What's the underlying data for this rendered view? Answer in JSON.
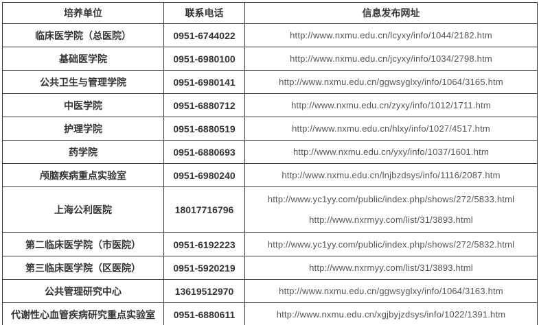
{
  "table": {
    "headers": {
      "unit": "培养单位",
      "phone": "联系电话",
      "url": "信息发布网址"
    },
    "rows": [
      {
        "unit": "临床医学院（总医院）",
        "phone": "0951-6744022",
        "urls": [
          "http://www.nxmu.edu.cn/lcyxy/info/1044/2182.htm"
        ]
      },
      {
        "unit": "基础医学院",
        "phone": "0951-6980100",
        "urls": [
          "http://www.nxmu.edu.cn/jcyxy/info/1034/2798.htm"
        ]
      },
      {
        "unit": "公共卫生与管理学院",
        "phone": "0951-6980141",
        "urls": [
          "http://www.nxmu.edu.cn/ggwsyglxy/info/1064/3165.htm"
        ]
      },
      {
        "unit": "中医学院",
        "phone": "0951-6880712",
        "urls": [
          "http://www.nxmu.edu.cn/zyxy/info/1012/1711.htm"
        ]
      },
      {
        "unit": "护理学院",
        "phone": "0951-6880519",
        "urls": [
          "http://www.nxmu.edu.cn/hlxy/info/1027/4517.htm"
        ]
      },
      {
        "unit": "药学院",
        "phone": "0951-6880693",
        "urls": [
          "http://www.nxmu.edu.cn/yxy/info/1037/1601.htm"
        ]
      },
      {
        "unit": "颅脑疾病重点实验室",
        "phone": "0951-6980240",
        "urls": [
          "http://www.nxmu.edu.cn/lnjbzdsys/info/1116/2087.htm"
        ]
      },
      {
        "unit": "上海公利医院",
        "phone": "18017716796",
        "urls": [
          "http://www.yc1yy.com/public/index.php/shows/272/5833.html",
          "http://www.nxrmyy.com/list/31/3893.html"
        ]
      },
      {
        "unit": "第二临床医学院（市医院）",
        "phone": "0951-6192223",
        "urls": [
          "http://www.yc1yy.com/public/index.php/shows/272/5832.html"
        ]
      },
      {
        "unit": "第三临床医学院（区医院）",
        "phone": "0951-5920219",
        "urls": [
          "http://www.nxrmyy.com/list/31/3893.html"
        ]
      },
      {
        "unit": "公共管理研究中心",
        "phone": "13619512970",
        "urls": [
          "http://www.nxmu.edu.cn/ggwsyglxy/info/1064/3163.htm"
        ]
      },
      {
        "unit": "代谢性心血管疾病研究重点实验室",
        "phone": "0951-6880611",
        "urls": [
          "http://www.nxmu.edu.cn/xgjbyjzdsys/info/1022/1391.htm"
        ]
      }
    ]
  },
  "colors": {
    "border": "#333333",
    "heading_text": "#333333",
    "url_text": "#555555",
    "background": "#ffffff"
  }
}
